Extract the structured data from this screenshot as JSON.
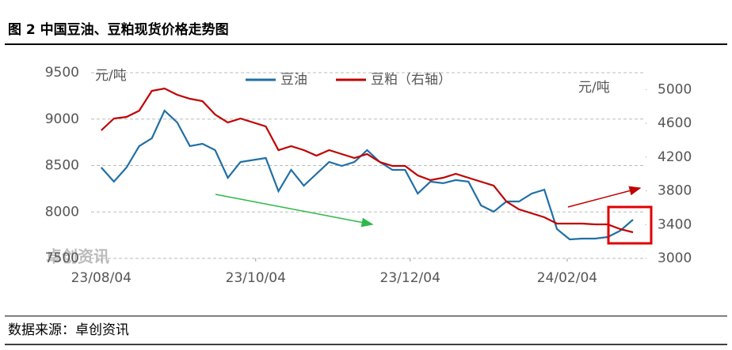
{
  "chart_data": {
    "type": "line",
    "title": "图 2 中国豆油、豆粕现货价格走势图",
    "source": "数据来源：卓创资讯",
    "watermark": "卓创资讯",
    "y_unit": "元/吨",
    "y2_unit": "元/吨",
    "x": [
      "23/08/04",
      "23/08/09",
      "23/08/14",
      "23/08/19",
      "23/08/24",
      "23/08/29",
      "23/09/03",
      "23/09/08",
      "23/09/13",
      "23/09/18",
      "23/09/23",
      "23/09/28",
      "23/10/08",
      "23/10/13",
      "23/10/18",
      "23/10/23",
      "23/10/28",
      "23/11/02",
      "23/11/07",
      "23/11/12",
      "23/11/17",
      "23/11/22",
      "23/11/27",
      "23/12/02",
      "23/12/07",
      "23/12/12",
      "23/12/17",
      "23/12/22",
      "23/12/27",
      "24/01/01",
      "24/01/06",
      "24/01/11",
      "24/01/16",
      "24/01/21",
      "24/01/26",
      "24/01/31",
      "24/02/05",
      "24/02/10",
      "24/02/15",
      "24/02/20",
      "24/02/25",
      "24/03/01"
    ],
    "xlim": [
      "23/07/31",
      "24/03/06"
    ],
    "xticks": [
      "23/08/04",
      "23/10/04",
      "23/12/04",
      "24/02/04"
    ],
    "ylim": [
      7500,
      9500
    ],
    "yticks": [
      7500,
      8000,
      8500,
      9000,
      9500
    ],
    "y2lim": [
      3000,
      5200
    ],
    "y2ticks": [
      3000,
      3400,
      3800,
      4200,
      4600,
      5000
    ],
    "grid": true,
    "series": [
      {
        "name": "豆油",
        "color": "#1f6fa5",
        "axis": "y",
        "values": [
          8479,
          8326,
          8479,
          8709,
          8794,
          9091,
          8964,
          8709,
          8734,
          8666,
          8368,
          8538,
          8581,
          8223,
          8453,
          8283,
          8411,
          8538,
          8496,
          8538,
          8666,
          8538,
          8453,
          8453,
          8198,
          8326,
          8309,
          8343,
          8326,
          8070,
          8002,
          8113,
          8113,
          8198,
          8240,
          7815,
          7704,
          7713,
          7713,
          7730,
          7798,
          7917
        ]
      },
      {
        "name": "豆粕（右轴）",
        "color": "#c00000",
        "axis": "y2",
        "values": [
          4517,
          4657,
          4676,
          4750,
          4985,
          5013,
          4938,
          4891,
          4863,
          4704,
          4610,
          4657,
          4563,
          4283,
          4329,
          4283,
          4217,
          4283,
          4236,
          4189,
          4236,
          4142,
          4095,
          4095,
          3983,
          3927,
          3955,
          4002,
          3955,
          3908,
          3861,
          3674,
          3580,
          3534,
          3487,
          3412,
          3412,
          3412,
          3403,
          3403,
          3346,
          3309
        ]
      }
    ]
  }
}
